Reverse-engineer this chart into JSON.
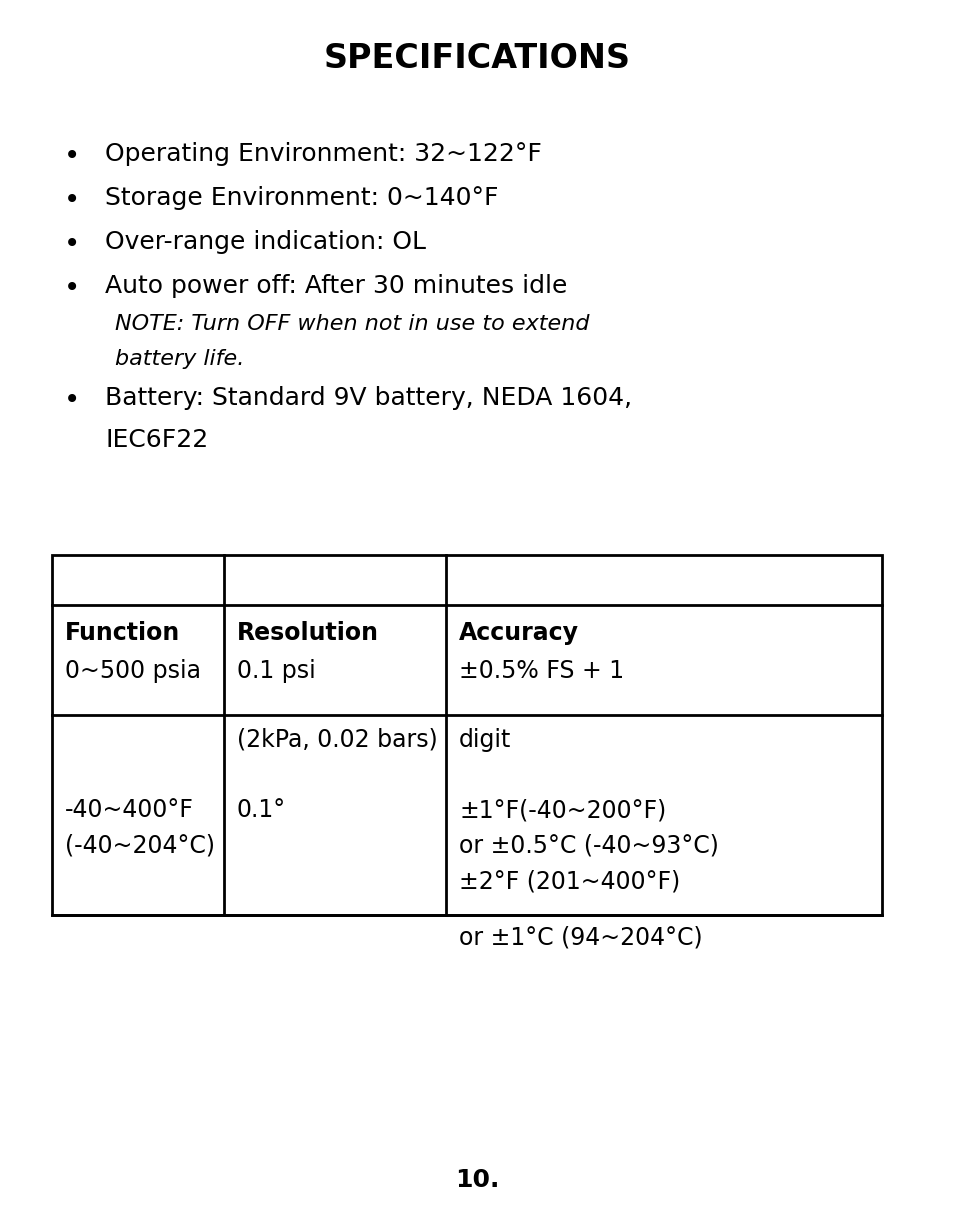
{
  "title": "SPECIFICATIONS",
  "bg_color": "#ffffff",
  "text_color": "#000000",
  "bullet_items": [
    "Operating Environment: 32~122°F",
    "Storage Environment: 0~140°F",
    "Over-range indication: OL",
    "Auto power off: After 30 minutes idle"
  ],
  "note_line1": "NOTE: Turn OFF when not in use to extend",
  "note_line2": "battery life.",
  "battery_line1": "Battery: Standard 9V battery, NEDA 1604,",
  "battery_line2": "IEC6F22",
  "table_headers": [
    "Function",
    "Resolution",
    "Accuracy"
  ],
  "row1_col1": "0~500 psia",
  "row1_col2": "0.1 psi",
  "row1_col3": "±0.5% FS + 1",
  "row2_col2": "(2kPa, 0.02 bars)",
  "row2_col3": "digit",
  "row3_col1_line1": "-40~400°F",
  "row3_col1_line2": "(-40~204°C)",
  "row3_col2": "0.1°",
  "row3_col3_line1": "±1°F(-40~200°F)",
  "row3_col3_line2": "or ±0.5°C (-40~93°C)",
  "row3_col3_line3": "±2°F (201~400°F)",
  "overflow_text": "or ±1°C (94~204°C)",
  "page_number": "10.",
  "title_fontsize": 24,
  "body_fontsize": 18,
  "note_fontsize": 16,
  "table_fontsize": 17
}
